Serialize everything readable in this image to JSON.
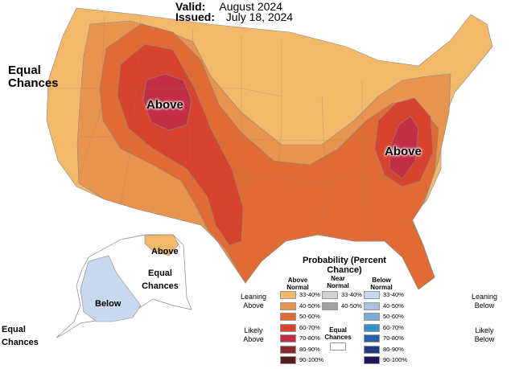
{
  "header": {
    "valid_key": "Valid:",
    "valid_value": "August 2024",
    "issued_key": "Issued:",
    "issued_value": "July 18, 2024"
  },
  "map": {
    "labels": {
      "equal_west": "Equal Chances",
      "above_west": "Above",
      "above_east": "Above",
      "above_alaska": "Above",
      "equal_alaska": "Equal Chances",
      "below_alaska": "Below",
      "equal_sw": "Equal Chances"
    }
  },
  "legend": {
    "title": "Probability (Percent Chance)",
    "col_above": "Above Normal",
    "col_near": "Near Normal",
    "col_below": "Below Normal",
    "leaning_above": "Leaning Above",
    "likely_above": "Likely Above",
    "leaning_below": "Leaning Below",
    "likely_below": "Likely Below",
    "equal_chances": "Equal Chances",
    "above_bins": [
      "33-40%",
      "40-50%",
      "50-60%",
      "60-70%",
      "70-80%",
      "80-90%",
      "90-100%"
    ],
    "near_bins": [
      "33-40%",
      "40-50%"
    ],
    "below_bins": [
      "33-40%",
      "40-50%",
      "50-60%",
      "60-70%",
      "70-80%",
      "80-90%",
      "90-100%"
    ]
  },
  "colors": {
    "above": [
      "#f2b96b",
      "#e8944f",
      "#e06b35",
      "#d8432d",
      "#c22e45",
      "#8a2a2c",
      "#5a1a1a"
    ],
    "near": [
      "#d0d0d0",
      "#a0a0a0"
    ],
    "below": [
      "#c8d8ef",
      "#a8c2e4",
      "#7eaad8",
      "#3a8fc8",
      "#2a5fa8",
      "#233a86",
      "#1b1a5a"
    ]
  }
}
